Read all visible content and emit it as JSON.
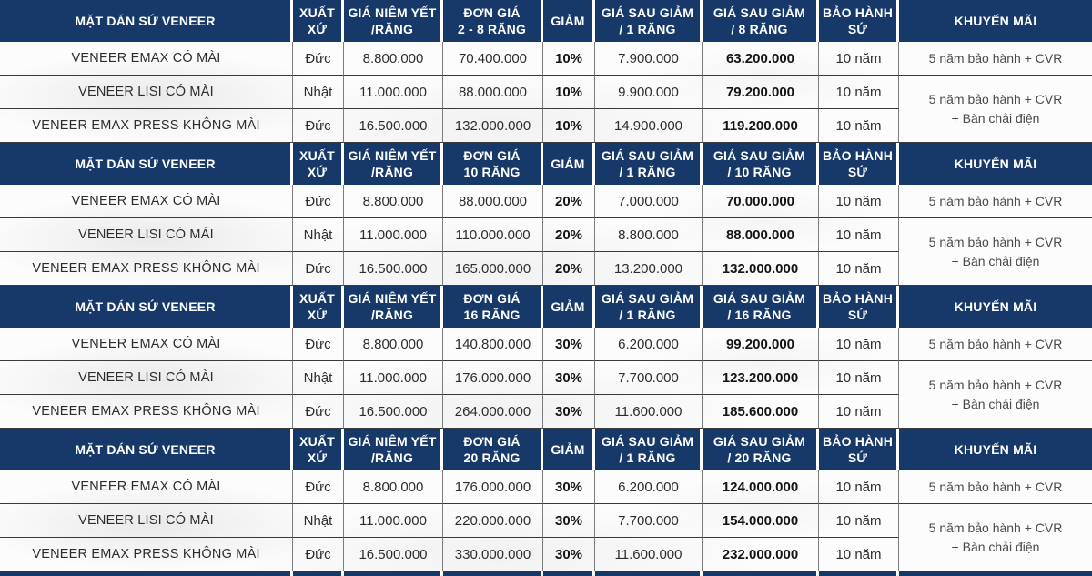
{
  "table": {
    "colors": {
      "header_navy": "#17396a",
      "row_line_dark": "#3a3a3a",
      "col_line_gray": "#7c7c7c"
    },
    "header_labels": {
      "product": "MẶT DÁN SỨ VENEER",
      "origin_line1": "XUẤT",
      "origin_line2": "XỨ",
      "list_price_line1": "GIÁ NIÊM YẾT",
      "list_price_line2": "/RĂNG",
      "discount": "GIẢM",
      "after_1_line1": "GIÁ SAU GIẢM",
      "after_1_line2": "/ 1 RĂNG",
      "warranty_line1": "BẢO HÀNH",
      "warranty_line2": "SỨ",
      "promo": "KHUYẾN MÃI"
    },
    "sections": [
      {
        "unit_price_header_line1": "ĐƠN GIÁ",
        "unit_price_header_line2": "2 - 8 RĂNG",
        "after_n_header_line1": "GIÁ SAU GIẢM",
        "after_n_header_line2": "/ 8 RĂNG",
        "rows": [
          {
            "product": "VENEER EMAX CÓ MÀI",
            "origin": "Đức",
            "list_price": "8.800.000",
            "unit_price": "70.400.000",
            "discount": "10%",
            "after_1": "7.900.000",
            "after_n": "63.200.000",
            "warranty": "10 năm"
          },
          {
            "product": "VENEER LISI CÓ MÀI",
            "origin": "Nhật",
            "list_price": "11.000.000",
            "unit_price": "88.000.000",
            "discount": "10%",
            "after_1": "9.900.000",
            "after_n": "79.200.000",
            "warranty": "10 năm"
          },
          {
            "product": "VENEER EMAX PRESS KHÔNG MÀI",
            "origin": "Đức",
            "list_price": "16.500.000",
            "unit_price": "132.000.000",
            "discount": "10%",
            "after_1": "14.900.000",
            "after_n": "119.200.000",
            "warranty": "10 năm"
          }
        ],
        "promo_row1": "5 năm bảo hành + CVR",
        "promo_merged_line1": "5 năm bảo hành + CVR",
        "promo_merged_line2": "+ Bàn chải điện"
      },
      {
        "unit_price_header_line1": "ĐƠN GIÁ",
        "unit_price_header_line2": "10 RĂNG",
        "after_n_header_line1": "GIÁ SAU GIẢM",
        "after_n_header_line2": "/ 10 RĂNG",
        "rows": [
          {
            "product": "VENEER EMAX CÓ MÀI",
            "origin": "Đức",
            "list_price": "8.800.000",
            "unit_price": "88.000.000",
            "discount": "20%",
            "after_1": "7.000.000",
            "after_n": "70.000.000",
            "warranty": "10 năm"
          },
          {
            "product": "VENEER LISI CÓ MÀI",
            "origin": "Nhật",
            "list_price": "11.000.000",
            "unit_price": "110.000.000",
            "discount": "20%",
            "after_1": "8.800.000",
            "after_n": "88.000.000",
            "warranty": "10 năm"
          },
          {
            "product": "VENEER EMAX PRESS KHÔNG MÀI",
            "origin": "Đức",
            "list_price": "16.500.000",
            "unit_price": "165.000.000",
            "discount": "20%",
            "after_1": "13.200.000",
            "after_n": "132.000.000",
            "warranty": "10 năm"
          }
        ],
        "promo_row1": "5 năm bảo hành + CVR",
        "promo_merged_line1": "5 năm bảo hành + CVR",
        "promo_merged_line2": "+ Bàn chải điện"
      },
      {
        "unit_price_header_line1": "ĐƠN GIÁ",
        "unit_price_header_line2": "16 RĂNG",
        "after_n_header_line1": "GIÁ SAU GIẢM",
        "after_n_header_line2": "/ 16 RĂNG",
        "rows": [
          {
            "product": "VENEER EMAX CÓ MÀI",
            "origin": "Đức",
            "list_price": "8.800.000",
            "unit_price": "140.800.000",
            "discount": "30%",
            "after_1": "6.200.000",
            "after_n": "99.200.000",
            "warranty": "10 năm"
          },
          {
            "product": "VENEER LISI CÓ MÀI",
            "origin": "Nhật",
            "list_price": "11.000.000",
            "unit_price": "176.000.000",
            "discount": "30%",
            "after_1": "7.700.000",
            "after_n": "123.200.000",
            "warranty": "10 năm"
          },
          {
            "product": "VENEER EMAX PRESS KHÔNG MÀI",
            "origin": "Đức",
            "list_price": "16.500.000",
            "unit_price": "264.000.000",
            "discount": "30%",
            "after_1": "11.600.000",
            "after_n": "185.600.000",
            "warranty": "10 năm"
          }
        ],
        "promo_row1": "5 năm bảo hành + CVR",
        "promo_merged_line1": "5 năm bảo hành + CVR",
        "promo_merged_line2": "+ Bàn chải điện"
      },
      {
        "unit_price_header_line1": "ĐƠN GIÁ",
        "unit_price_header_line2": "20 RĂNG",
        "after_n_header_line1": "GIÁ SAU GIẢM",
        "after_n_header_line2": "/ 20 RĂNG",
        "rows": [
          {
            "product": "VENEER EMAX CÓ MÀI",
            "origin": "Đức",
            "list_price": "8.800.000",
            "unit_price": "176.000.000",
            "discount": "30%",
            "after_1": "6.200.000",
            "after_n": "124.000.000",
            "warranty": "10 năm"
          },
          {
            "product": "VENEER LISI CÓ MÀI",
            "origin": "Nhật",
            "list_price": "11.000.000",
            "unit_price": "220.000.000",
            "discount": "30%",
            "after_1": "7.700.000",
            "after_n": "154.000.000",
            "warranty": "10 năm"
          },
          {
            "product": "VENEER EMAX PRESS KHÔNG MÀI",
            "origin": "Đức",
            "list_price": "16.500.000",
            "unit_price": "330.000.000",
            "discount": "30%",
            "after_1": "11.600.000",
            "after_n": "232.000.000",
            "warranty": "10 năm"
          }
        ],
        "promo_row1": "5 năm bảo hành + CVR",
        "promo_merged_line1": "5 năm bảo hành + CVR",
        "promo_merged_line2": "+ Bàn chải điện"
      }
    ]
  }
}
